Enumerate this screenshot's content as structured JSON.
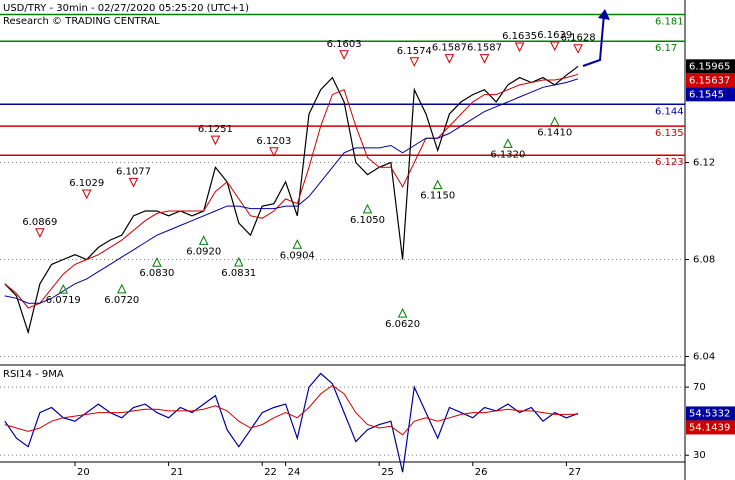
{
  "chart_data": [
    {
      "type": "line",
      "title": "USD/TRY - 30min - 02/27/2020 05:25:20 (UTC+1)",
      "subtitle": "Research © TRADING CENTRAL",
      "ylim": [
        6.0365,
        6.187
      ],
      "yticks": [
        6.04,
        6.08,
        6.12
      ],
      "grid": true,
      "series": [
        {
          "color": "#000000",
          "values": [
            6.07,
            6.065,
            6.05,
            6.07,
            6.078,
            6.08,
            6.082,
            6.08,
            6.085,
            6.088,
            6.09,
            6.098,
            6.1,
            6.1,
            6.098,
            6.1,
            6.098,
            6.1,
            6.118,
            6.112,
            6.095,
            6.09,
            6.102,
            6.103,
            6.112,
            6.098,
            6.14,
            6.15,
            6.155,
            6.145,
            6.12,
            6.115,
            6.118,
            6.12,
            6.08,
            6.15,
            6.14,
            6.125,
            6.14,
            6.145,
            6.148,
            6.15,
            6.145,
            6.152,
            6.155,
            6.153,
            6.155,
            6.152,
            6.156,
            6.15965
          ]
        },
        {
          "color": "#cc0000",
          "values": [
            6.07,
            6.066,
            6.06,
            6.062,
            6.068,
            6.074,
            6.078,
            6.08,
            6.082,
            6.085,
            6.088,
            6.092,
            6.096,
            6.099,
            6.1,
            6.1,
            6.1,
            6.1,
            6.108,
            6.112,
            6.105,
            6.098,
            6.097,
            6.1,
            6.105,
            6.103,
            6.118,
            6.135,
            6.148,
            6.15,
            6.135,
            6.122,
            6.118,
            6.118,
            6.11,
            6.12,
            6.13,
            6.13,
            6.135,
            6.14,
            6.145,
            6.148,
            6.148,
            6.15,
            6.152,
            6.153,
            6.154,
            6.154,
            6.155,
            6.15637
          ]
        },
        {
          "color": "#0000a0",
          "values": [
            6.065,
            6.064,
            6.062,
            6.062,
            6.064,
            6.067,
            6.07,
            6.072,
            6.075,
            6.078,
            6.081,
            6.084,
            6.087,
            6.09,
            6.092,
            6.094,
            6.096,
            6.098,
            6.1,
            6.102,
            6.102,
            6.101,
            6.101,
            6.101,
            6.102,
            6.102,
            6.106,
            6.112,
            6.118,
            6.124,
            6.126,
            6.126,
            6.126,
            6.127,
            6.124,
            6.127,
            6.13,
            6.13,
            6.132,
            6.135,
            6.138,
            6.141,
            6.143,
            6.145,
            6.147,
            6.149,
            6.151,
            6.152,
            6.153,
            6.1545
          ]
        }
      ],
      "levels": [
        {
          "value": 6.181,
          "color": "#008000"
        },
        {
          "value": 6.17,
          "color": "#008000"
        },
        {
          "value": 6.144,
          "color": "#0000a0"
        },
        {
          "value": 6.135,
          "color": "#cc0000"
        },
        {
          "value": 6.123,
          "color": "#cc0000"
        }
      ],
      "last_values": [
        {
          "value": 6.15965,
          "color": "#000000"
        },
        {
          "value": 6.15637,
          "color": "#cc0000"
        },
        {
          "value": 6.1545,
          "color": "#0000a0"
        }
      ],
      "markers": [
        {
          "x": 3,
          "value": 6.0869,
          "kind": "high"
        },
        {
          "x": 7,
          "value": 6.1029,
          "kind": "high"
        },
        {
          "x": 11,
          "value": 6.1077,
          "kind": "high"
        },
        {
          "x": 18,
          "value": 6.1251,
          "kind": "high"
        },
        {
          "x": 23,
          "value": 6.1203,
          "kind": "high"
        },
        {
          "x": 29,
          "value": 6.1603,
          "kind": "high"
        },
        {
          "x": 35,
          "value": 6.1574,
          "kind": "high"
        },
        {
          "x": 38,
          "value": 6.1587,
          "kind": "high"
        },
        {
          "x": 41,
          "value": 6.1587,
          "kind": "high"
        },
        {
          "x": 44,
          "value": 6.1635,
          "kind": "high"
        },
        {
          "x": 47,
          "value": 6.1639,
          "kind": "high"
        },
        {
          "x": 49,
          "value": 6.1628,
          "kind": "high"
        },
        {
          "x": 5,
          "value": 6.0719,
          "kind": "low"
        },
        {
          "x": 10,
          "value": 6.072,
          "label": "6.0720",
          "kind": "low"
        },
        {
          "x": 13,
          "value": 6.083,
          "label": "6.0830",
          "kind": "low"
        },
        {
          "x": 17,
          "value": 6.092,
          "label": "6.0920",
          "kind": "low"
        },
        {
          "x": 20,
          "value": 6.0831,
          "kind": "low"
        },
        {
          "x": 25,
          "value": 6.0904,
          "kind": "low"
        },
        {
          "x": 31,
          "value": 6.105,
          "label": "6.1050",
          "kind": "low"
        },
        {
          "x": 34,
          "value": 6.062,
          "label": "6.0620",
          "kind": "low"
        },
        {
          "x": 37,
          "value": 6.115,
          "label": "6.1150",
          "kind": "low"
        },
        {
          "x": 43,
          "value": 6.132,
          "label": "6.1320",
          "kind": "low"
        },
        {
          "x": 47,
          "value": 6.141,
          "label": "6.1410",
          "kind": "low"
        }
      ]
    },
    {
      "type": "line",
      "title": "RSI14 - 9MA",
      "ylim": [
        26,
        83
      ],
      "yticks": [
        30,
        70
      ],
      "grid": true,
      "categories": [
        null,
        null,
        null,
        null,
        null,
        null,
        "20",
        null,
        null,
        null,
        null,
        null,
        null,
        null,
        "21",
        null,
        null,
        null,
        null,
        null,
        null,
        null,
        "22",
        null,
        "24",
        null,
        null,
        null,
        null,
        null,
        null,
        null,
        "25",
        null,
        null,
        null,
        null,
        null,
        null,
        null,
        "26",
        null,
        null,
        null,
        null,
        null,
        null,
        null,
        "27",
        null
      ],
      "series": [
        {
          "color": "#0000a0",
          "values": [
            50,
            40,
            35,
            55,
            58,
            52,
            50,
            55,
            60,
            55,
            52,
            58,
            60,
            55,
            52,
            58,
            55,
            60,
            65,
            45,
            35,
            45,
            55,
            58,
            60,
            40,
            70,
            78,
            72,
            55,
            38,
            45,
            48,
            50,
            20,
            70,
            55,
            40,
            58,
            55,
            52,
            58,
            56,
            60,
            55,
            58,
            50,
            55,
            52,
            54.5332
          ]
        },
        {
          "color": "#cc0000",
          "values": [
            48,
            46,
            44,
            46,
            50,
            52,
            53,
            54,
            55,
            55,
            55,
            56,
            57,
            57,
            56,
            56,
            56,
            57,
            59,
            56,
            50,
            46,
            48,
            52,
            55,
            52,
            58,
            66,
            71,
            66,
            55,
            48,
            46,
            47,
            42,
            50,
            52,
            50,
            52,
            54,
            55,
            55,
            56,
            57,
            56,
            56,
            55,
            54,
            54,
            54.1439
          ]
        }
      ],
      "last_values": [
        {
          "value": 54.5332,
          "color": "#0000a0"
        },
        {
          "value": 54.1439,
          "color": "#cc0000"
        }
      ]
    }
  ]
}
